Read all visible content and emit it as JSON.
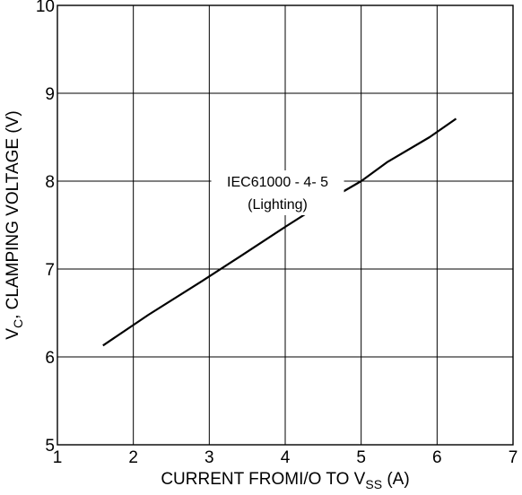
{
  "chart_data": {
    "type": "line",
    "title": "",
    "xlim": [
      1,
      7
    ],
    "ylim": [
      5,
      10
    ],
    "x_ticks": [
      1,
      2,
      3,
      4,
      5,
      6,
      7
    ],
    "y_ticks": [
      5,
      6,
      7,
      8,
      9,
      10
    ],
    "xlabel": {
      "main": "CURRENT FROMI/O TO V",
      "subscript": "SS",
      "suffix": " (A)"
    },
    "ylabel": {
      "main": "V",
      "subscript": "C",
      "suffix": ", CLAMPING VOLTAGE (V)"
    },
    "grid": true,
    "series": [
      {
        "x": [
          1.6,
          2.2,
          2.9,
          3.4,
          4.0,
          4.4,
          5.0,
          5.35,
          5.9,
          6.25
        ],
        "y": [
          6.13,
          6.48,
          6.86,
          7.14,
          7.48,
          7.7,
          8.0,
          8.22,
          8.5,
          8.71
        ]
      }
    ],
    "annotations": [
      {
        "line1": "IEC61000 - 4- 5",
        "line2": "(Lighting)",
        "x": 3.9,
        "y": 8.0
      }
    ]
  }
}
